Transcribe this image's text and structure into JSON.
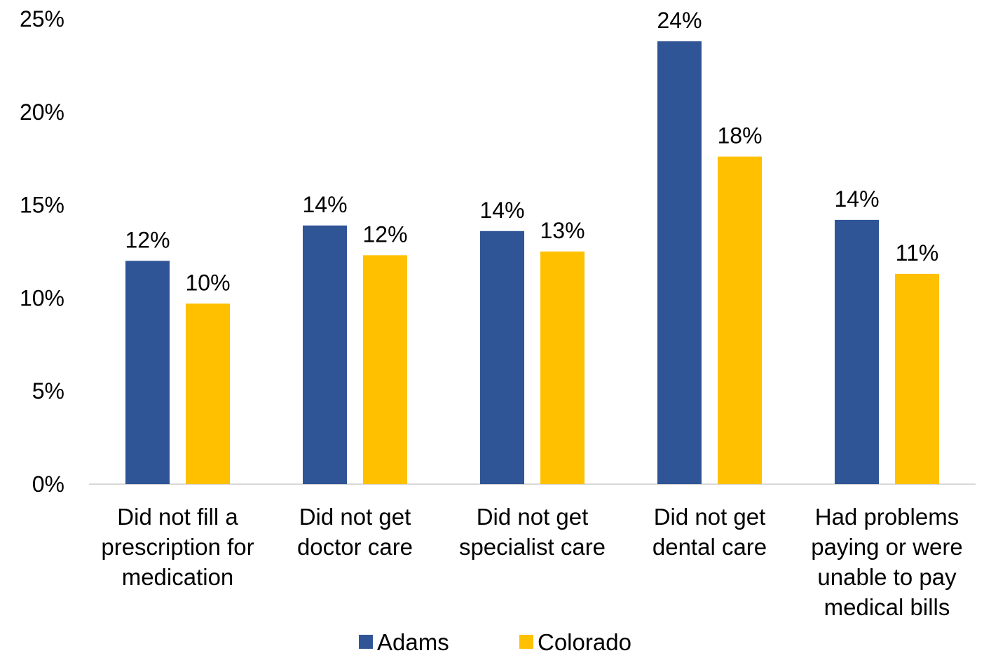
{
  "chart_data": {
    "type": "bar",
    "categories": [
      [
        "Did not fill a",
        "prescription for",
        "medication"
      ],
      [
        "Did not get",
        "doctor care"
      ],
      [
        "Did not get",
        "specialist care"
      ],
      [
        "Did not get",
        "dental care"
      ],
      [
        "Had problems",
        "paying or were",
        "unable to pay",
        "medical bills"
      ]
    ],
    "series": [
      {
        "name": "Adams",
        "color": "#2F5597",
        "values": [
          12.0,
          13.9,
          13.6,
          23.8,
          14.2
        ],
        "labels": [
          "12%",
          "14%",
          "14%",
          "24%",
          "14%"
        ]
      },
      {
        "name": "Colorado",
        "color": "#FFC000",
        "values": [
          9.7,
          12.3,
          12.5,
          17.6,
          11.3
        ],
        "labels": [
          "10%",
          "12%",
          "13%",
          "18%",
          "11%"
        ]
      }
    ],
    "y_ticks": [
      "0%",
      "5%",
      "10%",
      "15%",
      "20%",
      "25%"
    ],
    "ylim": [
      0,
      25
    ],
    "title": "",
    "xlabel": "",
    "ylabel": "",
    "grid": false,
    "legend_position": "bottom-center",
    "axis_color": "#D9D9D9"
  }
}
